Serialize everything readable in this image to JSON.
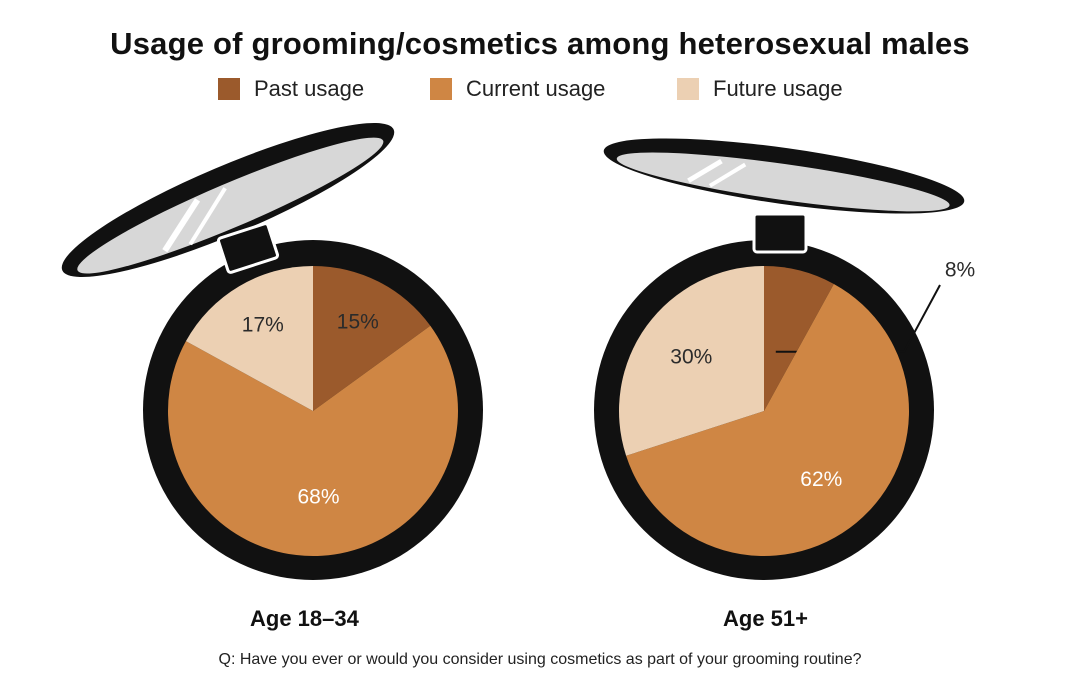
{
  "chart_data": {
    "type": "pie",
    "title": "Usage of grooming/cosmetics among heterosexual males",
    "legend": [
      {
        "label": "Past usage",
        "color": "#9b5a2c"
      },
      {
        "label": "Current usage",
        "color": "#cf8644"
      },
      {
        "label": "Future usage",
        "color": "#ecd0b3"
      }
    ],
    "pies": [
      {
        "label": "Age 18–34",
        "slices": [
          {
            "name": "Past usage",
            "value": 15,
            "label": "15%"
          },
          {
            "name": "Current usage",
            "value": 68,
            "label": "68%"
          },
          {
            "name": "Future usage",
            "value": 17,
            "label": "17%"
          }
        ]
      },
      {
        "label": "Age 51+",
        "slices": [
          {
            "name": "Past usage",
            "value": 8,
            "label": "8%"
          },
          {
            "name": "Current usage",
            "value": 62,
            "label": "62%"
          },
          {
            "name": "Future usage",
            "value": 30,
            "label": "30%"
          }
        ]
      }
    ],
    "question": "Q: Have you ever or would you consider using cosmetics as part of your grooming routine?"
  }
}
